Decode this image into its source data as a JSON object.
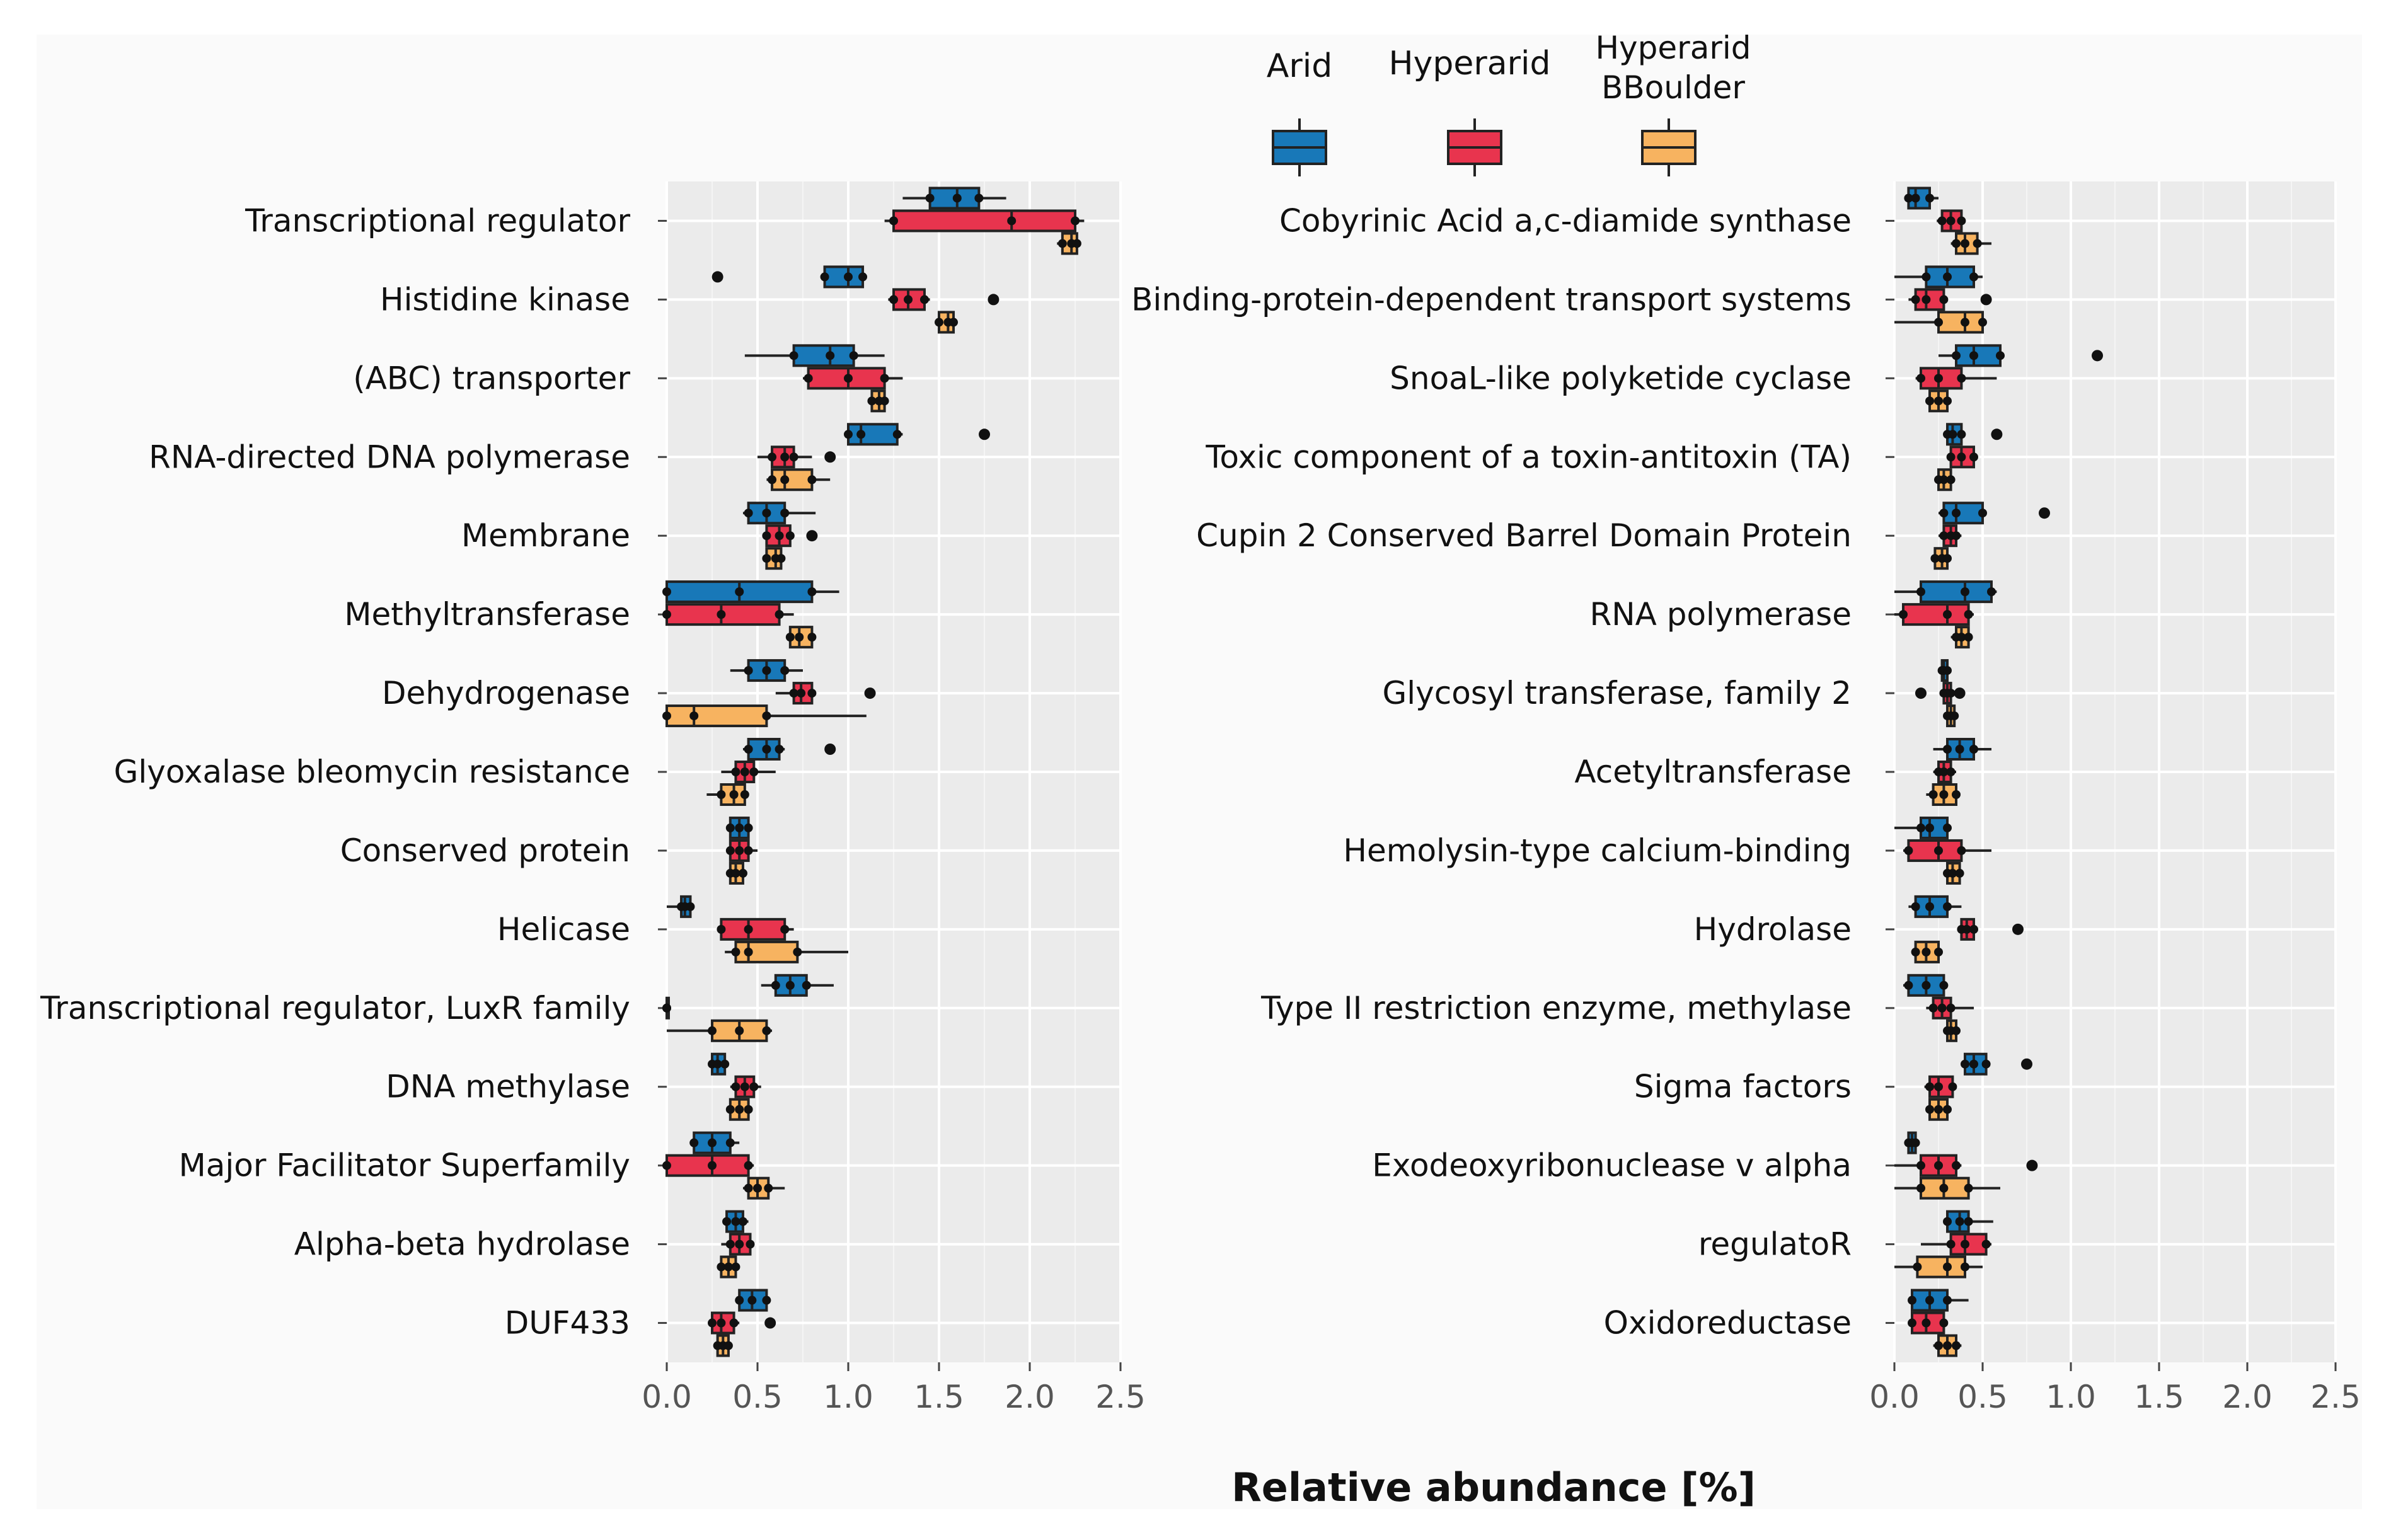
{
  "chart_data": {
    "type": "boxplot",
    "xlabel": "Relative abundance [%]",
    "xlim": [
      0,
      2.5
    ],
    "xticks": [
      "0.0",
      "0.5",
      "1.0",
      "1.5",
      "2.0",
      "2.5"
    ],
    "legend": {
      "placement": "top-center",
      "entries": [
        {
          "name": "Arid",
          "color": "#1878b8"
        },
        {
          "name": "Hyperarid",
          "color": "#e8344e"
        },
        {
          "name": "Hyperarid\nBBoulder",
          "color": "#f7b360"
        }
      ]
    },
    "panels": [
      {
        "name": "left",
        "categories": [
          {
            "label": "Transcriptional regulator",
            "boxes": [
              [
                1.45,
                1.6,
                1.72,
                1.3,
                1.87,
                []
              ],
              [
                1.25,
                1.9,
                2.25,
                1.2,
                2.3,
                []
              ],
              [
                2.18,
                2.23,
                2.26,
                2.15,
                2.28,
                []
              ]
            ]
          },
          {
            "label": "Histidine kinase",
            "boxes": [
              [
                0.87,
                1.0,
                1.08,
                0.85,
                1.1,
                [
                  0.28
                ]
              ],
              [
                1.25,
                1.33,
                1.42,
                1.22,
                1.45,
                [
                  1.8
                ]
              ],
              [
                1.5,
                1.55,
                1.58,
                1.48,
                1.6,
                []
              ]
            ]
          },
          {
            "label": "(ABC) transporter",
            "boxes": [
              [
                0.7,
                0.9,
                1.03,
                0.43,
                1.2,
                []
              ],
              [
                0.78,
                1.0,
                1.2,
                0.75,
                1.3,
                []
              ],
              [
                1.13,
                1.17,
                1.2,
                1.12,
                1.22,
                []
              ]
            ]
          },
          {
            "label": "RNA-directed DNA polymerase",
            "boxes": [
              [
                1.0,
                1.07,
                1.27,
                0.98,
                1.3,
                [
                  1.75
                ]
              ],
              [
                0.58,
                0.65,
                0.7,
                0.5,
                0.8,
                [
                  0.9
                ]
              ],
              [
                0.58,
                0.65,
                0.8,
                0.55,
                0.9,
                []
              ]
            ]
          },
          {
            "label": "Membrane",
            "boxes": [
              [
                0.45,
                0.55,
                0.65,
                0.42,
                0.82,
                []
              ],
              [
                0.55,
                0.62,
                0.68,
                0.53,
                0.7,
                [
                  0.8
                ]
              ],
              [
                0.55,
                0.6,
                0.63,
                0.54,
                0.65,
                []
              ]
            ]
          },
          {
            "label": "Methyltransferase",
            "boxes": [
              [
                0.0,
                0.4,
                0.8,
                0.0,
                0.95,
                []
              ],
              [
                0.0,
                0.3,
                0.62,
                0.0,
                0.7,
                []
              ],
              [
                0.68,
                0.73,
                0.8,
                0.66,
                0.82,
                []
              ]
            ]
          },
          {
            "label": "Dehydrogenase",
            "boxes": [
              [
                0.45,
                0.55,
                0.65,
                0.35,
                0.75,
                []
              ],
              [
                0.7,
                0.74,
                0.8,
                0.6,
                0.82,
                [
                  1.12
                ]
              ],
              [
                0.0,
                0.15,
                0.55,
                0.0,
                1.1,
                []
              ]
            ]
          },
          {
            "label": "Glyoxalase bleomycin resistance",
            "boxes": [
              [
                0.45,
                0.55,
                0.62,
                0.42,
                0.65,
                [
                  0.9
                ]
              ],
              [
                0.38,
                0.43,
                0.48,
                0.3,
                0.6,
                []
              ],
              [
                0.3,
                0.37,
                0.43,
                0.22,
                0.45,
                []
              ]
            ]
          },
          {
            "label": "Conserved protein",
            "boxes": [
              [
                0.35,
                0.4,
                0.45,
                0.33,
                0.47,
                []
              ],
              [
                0.35,
                0.4,
                0.45,
                0.33,
                0.5,
                []
              ],
              [
                0.35,
                0.38,
                0.42,
                0.33,
                0.44,
                []
              ]
            ]
          },
          {
            "label": "Helicase",
            "boxes": [
              [
                0.08,
                0.1,
                0.13,
                0.0,
                0.15,
                []
              ],
              [
                0.3,
                0.45,
                0.65,
                0.28,
                0.7,
                []
              ],
              [
                0.38,
                0.45,
                0.72,
                0.32,
                1.0,
                []
              ]
            ]
          },
          {
            "label": "Transcriptional regulator, LuxR family",
            "boxes": [
              [
                0.6,
                0.68,
                0.77,
                0.52,
                0.92,
                []
              ],
              [
                0.0,
                0.0,
                0.0,
                0.0,
                0.0,
                []
              ],
              [
                0.25,
                0.4,
                0.55,
                0.0,
                0.58,
                []
              ]
            ]
          },
          {
            "label": "DNA methylase",
            "boxes": [
              [
                0.25,
                0.28,
                0.32,
                0.24,
                0.33,
                []
              ],
              [
                0.38,
                0.43,
                0.48,
                0.35,
                0.52,
                []
              ],
              [
                0.35,
                0.4,
                0.45,
                0.33,
                0.47,
                []
              ]
            ]
          },
          {
            "label": "Major Facilitator Superfamily",
            "boxes": [
              [
                0.15,
                0.25,
                0.35,
                0.14,
                0.4,
                []
              ],
              [
                0.0,
                0.25,
                0.45,
                0.0,
                0.48,
                []
              ],
              [
                0.45,
                0.5,
                0.56,
                0.42,
                0.65,
                []
              ]
            ]
          },
          {
            "label": "Alpha-beta hydrolase",
            "boxes": [
              [
                0.33,
                0.38,
                0.42,
                0.32,
                0.45,
                []
              ],
              [
                0.35,
                0.4,
                0.46,
                0.3,
                0.48,
                []
              ],
              [
                0.3,
                0.34,
                0.38,
                0.28,
                0.4,
                []
              ]
            ]
          },
          {
            "label": "DUF433",
            "boxes": [
              [
                0.4,
                0.47,
                0.55,
                0.38,
                0.57,
                []
              ],
              [
                0.25,
                0.3,
                0.37,
                0.24,
                0.4,
                [
                  0.57
                ]
              ],
              [
                0.28,
                0.31,
                0.34,
                0.27,
                0.35,
                []
              ]
            ]
          }
        ]
      },
      {
        "name": "right",
        "categories": [
          {
            "label": "Cobyrinic Acid a,c-diamide synthase",
            "boxes": [
              [
                0.08,
                0.12,
                0.2,
                0.06,
                0.25,
                []
              ],
              [
                0.27,
                0.32,
                0.38,
                0.24,
                0.4,
                []
              ],
              [
                0.35,
                0.4,
                0.47,
                0.32,
                0.55,
                []
              ]
            ]
          },
          {
            "label": "Binding-protein-dependent transport systems",
            "boxes": [
              [
                0.18,
                0.3,
                0.45,
                0.0,
                0.5,
                []
              ],
              [
                0.12,
                0.18,
                0.28,
                0.08,
                0.3,
                [
                  0.52
                ]
              ],
              [
                0.25,
                0.4,
                0.5,
                0.0,
                0.52,
                []
              ]
            ]
          },
          {
            "label": "SnoaL-like polyketide cyclase",
            "boxes": [
              [
                0.35,
                0.45,
                0.6,
                0.25,
                0.62,
                [
                  1.15
                ]
              ],
              [
                0.15,
                0.25,
                0.38,
                0.12,
                0.58,
                []
              ],
              [
                0.2,
                0.25,
                0.3,
                0.18,
                0.32,
                []
              ]
            ]
          },
          {
            "label": "Toxic component of a toxin-antitoxin (TA)",
            "boxes": [
              [
                0.3,
                0.33,
                0.38,
                0.28,
                0.4,
                [
                  0.58
                ]
              ],
              [
                0.32,
                0.38,
                0.45,
                0.3,
                0.46,
                []
              ],
              [
                0.25,
                0.28,
                0.32,
                0.23,
                0.33,
                []
              ]
            ]
          },
          {
            "label": "Cupin 2 Conserved Barrel Domain Protein",
            "boxes": [
              [
                0.28,
                0.35,
                0.5,
                0.25,
                0.52,
                [
                  0.85
                ]
              ],
              [
                0.28,
                0.32,
                0.35,
                0.25,
                0.38,
                []
              ],
              [
                0.23,
                0.27,
                0.3,
                0.22,
                0.32,
                []
              ]
            ]
          },
          {
            "label": "RNA polymerase",
            "boxes": [
              [
                0.15,
                0.4,
                0.55,
                0.0,
                0.58,
                []
              ],
              [
                0.05,
                0.3,
                0.42,
                0.0,
                0.45,
                []
              ],
              [
                0.35,
                0.38,
                0.42,
                0.32,
                0.44,
                []
              ]
            ]
          },
          {
            "label": "Glycosyl transferase, family 2",
            "boxes": [
              [
                0.27,
                0.28,
                0.3,
                0.26,
                0.31,
                []
              ],
              [
                0.28,
                0.3,
                0.32,
                0.26,
                0.34,
                [
                  0.15,
                  0.37
                ]
              ],
              [
                0.3,
                0.32,
                0.34,
                0.29,
                0.36,
                []
              ]
            ]
          },
          {
            "label": "Acetyltransferase",
            "boxes": [
              [
                0.3,
                0.37,
                0.45,
                0.22,
                0.55,
                []
              ],
              [
                0.25,
                0.28,
                0.32,
                0.22,
                0.35,
                []
              ],
              [
                0.22,
                0.28,
                0.35,
                0.18,
                0.37,
                []
              ]
            ]
          },
          {
            "label": "Hemolysin-type calcium-binding",
            "boxes": [
              [
                0.15,
                0.2,
                0.3,
                0.0,
                0.32,
                []
              ],
              [
                0.08,
                0.25,
                0.38,
                0.05,
                0.55,
                []
              ],
              [
                0.3,
                0.33,
                0.37,
                0.28,
                0.38,
                []
              ]
            ]
          },
          {
            "label": "Hydrolase",
            "boxes": [
              [
                0.12,
                0.2,
                0.3,
                0.08,
                0.38,
                []
              ],
              [
                0.38,
                0.41,
                0.45,
                0.37,
                0.46,
                [
                  0.7
                ]
              ],
              [
                0.12,
                0.18,
                0.25,
                0.1,
                0.27,
                []
              ]
            ]
          },
          {
            "label": "Type II restriction enzyme, methylase",
            "boxes": [
              [
                0.08,
                0.18,
                0.28,
                0.05,
                0.3,
                []
              ],
              [
                0.22,
                0.27,
                0.32,
                0.18,
                0.45,
                []
              ],
              [
                0.3,
                0.32,
                0.35,
                0.28,
                0.37,
                []
              ]
            ]
          },
          {
            "label": "Sigma factors",
            "boxes": [
              [
                0.4,
                0.45,
                0.52,
                0.38,
                0.54,
                [
                  0.75
                ]
              ],
              [
                0.2,
                0.25,
                0.33,
                0.17,
                0.35,
                []
              ],
              [
                0.2,
                0.25,
                0.3,
                0.18,
                0.32,
                []
              ]
            ]
          },
          {
            "label": "Exodeoxyribonuclease v alpha",
            "boxes": [
              [
                0.08,
                0.1,
                0.12,
                0.06,
                0.13,
                []
              ],
              [
                0.15,
                0.25,
                0.35,
                0.0,
                0.38,
                [
                  0.78
                ]
              ],
              [
                0.15,
                0.28,
                0.42,
                0.0,
                0.6,
                []
              ]
            ]
          },
          {
            "label": "regulatoR",
            "boxes": [
              [
                0.3,
                0.37,
                0.42,
                0.28,
                0.56,
                []
              ],
              [
                0.32,
                0.4,
                0.52,
                0.15,
                0.55,
                []
              ],
              [
                0.13,
                0.3,
                0.4,
                0.0,
                0.5,
                []
              ]
            ]
          },
          {
            "label": "Oxidoreductase",
            "boxes": [
              [
                0.1,
                0.2,
                0.3,
                0.08,
                0.42,
                []
              ],
              [
                0.1,
                0.18,
                0.28,
                0.08,
                0.3,
                []
              ],
              [
                0.25,
                0.3,
                0.35,
                0.22,
                0.38,
                []
              ]
            ]
          }
        ]
      }
    ]
  }
}
